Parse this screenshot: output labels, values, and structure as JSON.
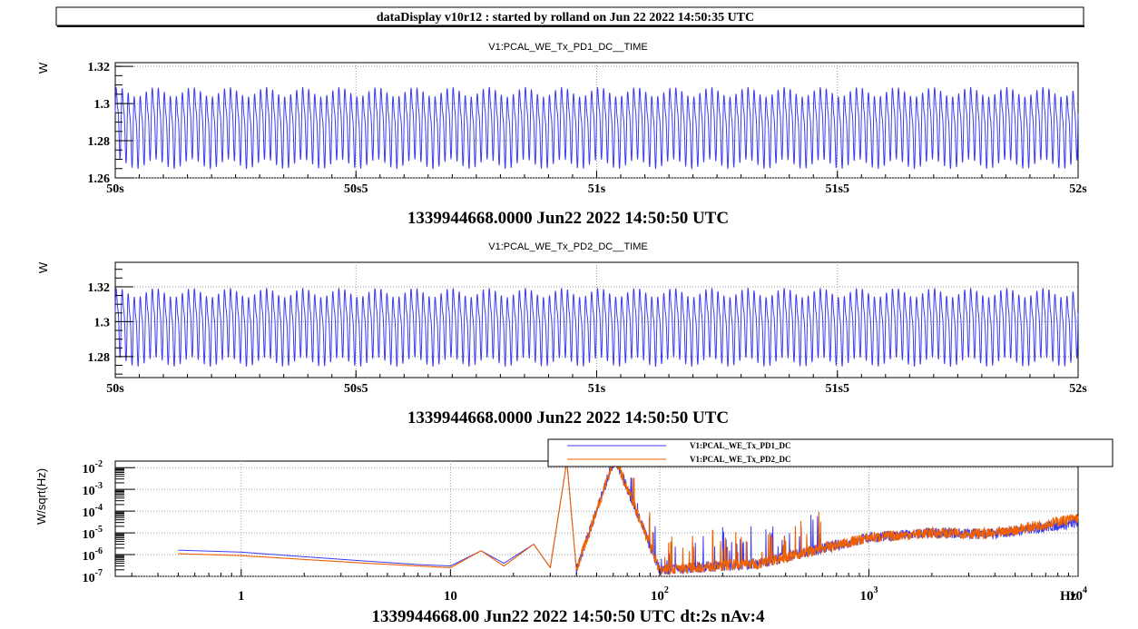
{
  "header": {
    "title": "dataDisplay v10r12 : started by rolland on Jun 22 2022 14:50:35 UTC"
  },
  "colors": {
    "pd1": "#3c3cf0",
    "pd2": "#f06000",
    "frame": "#000000",
    "grid": "#9a9a9a"
  },
  "chart_data": [
    {
      "type": "line",
      "title": "V1:PCAL_WE_Tx_PD1_DC__TIME",
      "ylabel": "W",
      "xlabel": "1339944668.0000 Jun22 2022 14:50:50 UTC",
      "x_ticks": [
        "50s",
        "50s5",
        "51s",
        "51s5",
        "52s"
      ],
      "y_ticks": [
        "1.26",
        "1.28",
        "1.3",
        "1.32"
      ],
      "ylim": [
        1.26,
        1.322
      ],
      "x_range_s": [
        50,
        52
      ],
      "grid": true,
      "series": [
        {
          "color": "#3c3cf0",
          "mean": 1.289,
          "amplitude": 0.0215,
          "main_freq_hz": 80,
          "harmonic_freq_hz": 160
        }
      ]
    },
    {
      "type": "line",
      "title": "V1:PCAL_WE_Tx_PD2_DC__TIME",
      "ylabel": "W",
      "xlabel": "1339944668.0000 Jun22 2022 14:50:50 UTC",
      "x_ticks": [
        "50s",
        "50s5",
        "51s",
        "51s5",
        "52s"
      ],
      "y_ticks": [
        "1.28",
        "1.3",
        "1.32"
      ],
      "ylim": [
        1.268,
        1.334
      ],
      "x_range_s": [
        50,
        52
      ],
      "grid": true,
      "series": [
        {
          "color": "#3c3cf0",
          "mean": 1.299,
          "amplitude": 0.022,
          "main_freq_hz": 80,
          "harmonic_freq_hz": 160
        }
      ]
    },
    {
      "type": "line",
      "title": "",
      "ylabel": "W/sqrt(Hz)",
      "xlabel": "1339944668.00 Jun22 2022 14:50:50 UTC dt:2s nAv:4",
      "x_scale": "log",
      "y_scale": "log",
      "xlim": [
        0.25,
        10000
      ],
      "ylim": [
        1e-07,
        0.02
      ],
      "x_ticks": [
        {
          "value": 1,
          "base": "1",
          "exp": ""
        },
        {
          "value": 10,
          "base": "10",
          "exp": ""
        },
        {
          "value": 100,
          "base": "10",
          "exp": "2"
        },
        {
          "value": 1000,
          "base": "10",
          "exp": "3"
        },
        {
          "value": 10000,
          "base": "10",
          "exp": "4"
        }
      ],
      "x_unit": "Hz",
      "y_ticks": [
        {
          "value": 1e-07,
          "base": "10",
          "exp": "-7"
        },
        {
          "value": 1e-06,
          "base": "10",
          "exp": "-6"
        },
        {
          "value": 1e-05,
          "base": "10",
          "exp": "-5"
        },
        {
          "value": 0.0001,
          "base": "10",
          "exp": "-4"
        },
        {
          "value": 0.001,
          "base": "10",
          "exp": "-3"
        },
        {
          "value": 0.01,
          "base": "10",
          "exp": "-2"
        }
      ],
      "grid": true,
      "legend_position": "top-right",
      "series": [
        {
          "name": "V1:PCAL_WE_Tx_PD1_DC",
          "color": "#3c3cf0",
          "points": [
            [
              0.5,
              1.6e-06
            ],
            [
              1,
              1.3e-06
            ],
            [
              2,
              8e-07
            ],
            [
              4,
              5e-07
            ],
            [
              7,
              3.5e-07
            ],
            [
              10,
              3e-07
            ],
            [
              14,
              1.5e-06
            ],
            [
              18,
              4e-07
            ],
            [
              25,
              3e-06
            ],
            [
              30,
              2.5e-07
            ],
            [
              36,
              0.02
            ],
            [
              40,
              2e-07
            ],
            [
              61,
              0.03
            ],
            [
              100,
              2e-07
            ],
            [
              300,
              4e-07
            ],
            [
              1000,
              6e-06
            ],
            [
              2000,
              1e-05
            ],
            [
              4000,
              9e-06
            ],
            [
              10000,
              3e-05
            ]
          ]
        },
        {
          "name": "V1:PCAL_WE_Tx_PD2_DC",
          "color": "#f06000",
          "points": [
            [
              0.5,
              1.1e-06
            ],
            [
              1,
              9e-07
            ],
            [
              2,
              6e-07
            ],
            [
              4,
              4e-07
            ],
            [
              7,
              3e-07
            ],
            [
              10,
              2.5e-07
            ],
            [
              14,
              1.5e-06
            ],
            [
              18,
              3e-07
            ],
            [
              25,
              3e-06
            ],
            [
              30,
              2.5e-07
            ],
            [
              36,
              0.02
            ],
            [
              40,
              2e-07
            ],
            [
              61,
              0.03
            ],
            [
              100,
              2e-07
            ],
            [
              300,
              4e-07
            ],
            [
              1000,
              6e-06
            ],
            [
              2000,
              1e-05
            ],
            [
              4000,
              9e-06
            ],
            [
              10000,
              5e-05
            ]
          ]
        }
      ]
    }
  ]
}
